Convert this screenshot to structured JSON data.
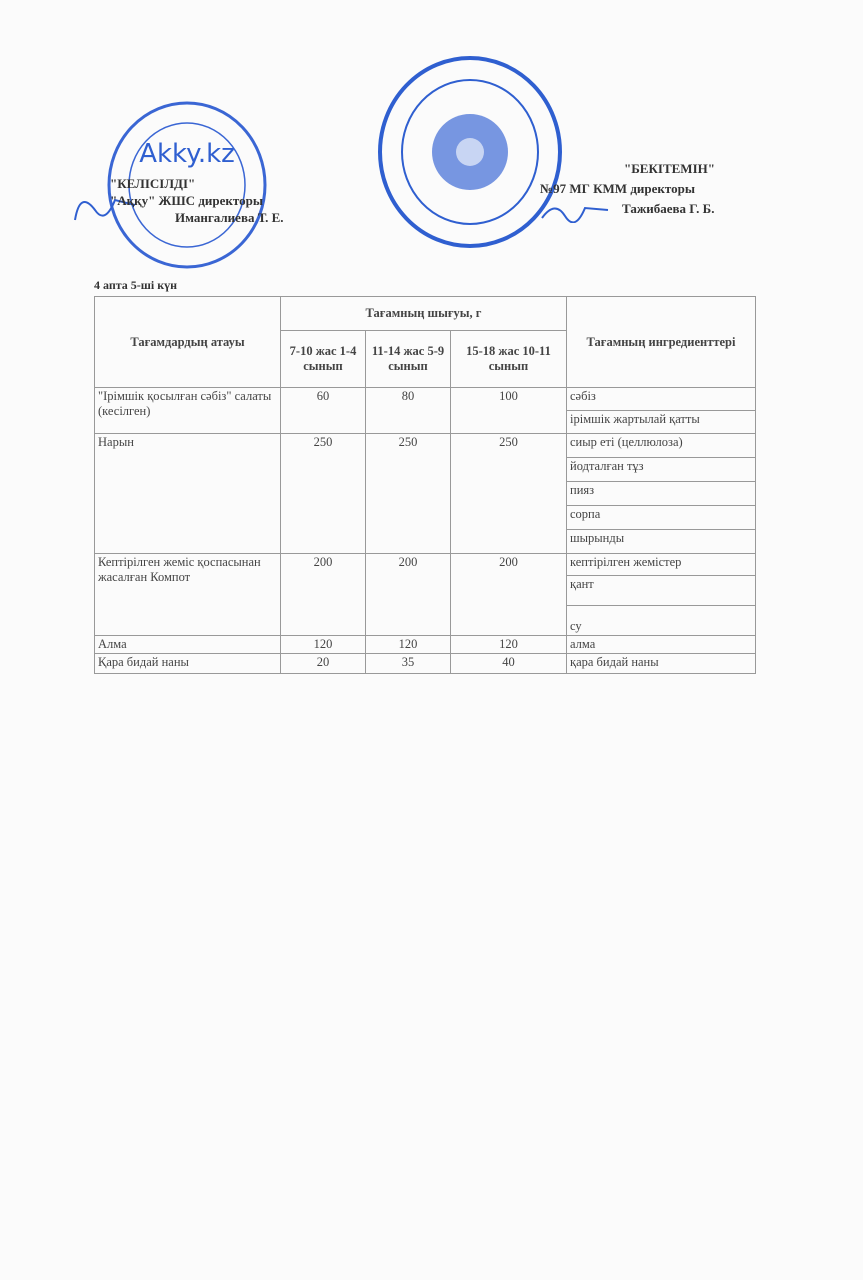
{
  "left_approval": {
    "title": "\"КЕЛІСІЛДІ\"",
    "org": "\"Аққу\" ЖШС директоры",
    "name": "Имангалиева Т. Е.",
    "stamp_text": "Akky.kz"
  },
  "right_approval": {
    "title": "\"БЕКІТЕМІН\"",
    "org": "№97 МГ КММ директоры",
    "name": "Тажибаева Г. Б."
  },
  "day_label": "4 апта 5-ші күн",
  "table": {
    "headers": {
      "dish": "Тағамдардың атауы",
      "yield": "Тағамның шығуы, г",
      "age1": "7-10 жас 1-4 сынып",
      "age2": "11-14 жас 5-9 сынып",
      "age3": "15-18 жас 10-11 сынып",
      "ingredients": "Тағамның ингредиенттері"
    },
    "rows": [
      {
        "dish": "\"Ірімшік қосылған сәбіз\" салаты (кесілген)",
        "v1": "60",
        "v2": "80",
        "v3": "100",
        "ingredients": [
          "сәбіз",
          "ірімшік жартылай қатты"
        ]
      },
      {
        "dish": "Нарын",
        "v1": "250",
        "v2": "250",
        "v3": "250",
        "ingredients": [
          "сиыр еті (целлюлоза)",
          "йодталған тұз",
          "пияз",
          "сорпа",
          "шырынды"
        ]
      },
      {
        "dish": "Кептірілген жеміс қоспасынан жасалған Компот",
        "v1": "200",
        "v2": "200",
        "v3": "200",
        "ingredients": [
          "кептірілген жемістер",
          "қант",
          "су"
        ]
      },
      {
        "dish": "Алма",
        "v1": "120",
        "v2": "120",
        "v3": "120",
        "ingredients": [
          "алма"
        ]
      },
      {
        "dish": "Қара бидай наны",
        "v1": "20",
        "v2": "35",
        "v3": "40",
        "ingredients": [
          "қара бидай наны"
        ]
      }
    ]
  },
  "colors": {
    "stamp": "#2f5fd0"
  }
}
